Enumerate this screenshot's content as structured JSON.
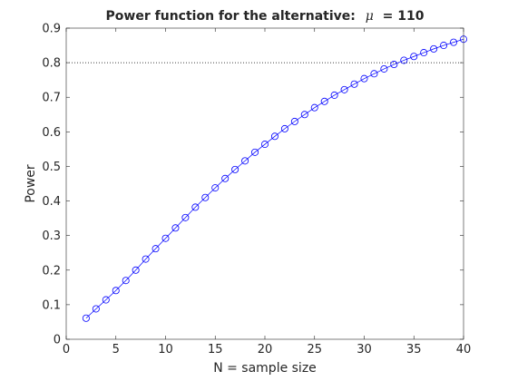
{
  "chart_data": {
    "type": "line",
    "title": "Power function for the alternative:",
    "title_symbol": "μ",
    "title_value": " = 110",
    "xlabel": "N = sample size",
    "ylabel": "Power",
    "xlim": [
      0,
      40
    ],
    "ylim": [
      0,
      0.9
    ],
    "xticks": [
      0,
      5,
      10,
      15,
      20,
      25,
      30,
      35,
      40
    ],
    "yticks": [
      0,
      0.1,
      0.2,
      0.3,
      0.4,
      0.5,
      0.6,
      0.7,
      0.8,
      0.9
    ],
    "grid": false,
    "reference_line": {
      "y": 0.8,
      "style": "dotted",
      "color": "#000000"
    },
    "series": [
      {
        "color": "#0000ff",
        "marker": "circle",
        "x": [
          2,
          3,
          4,
          5,
          6,
          7,
          8,
          9,
          10,
          11,
          12,
          13,
          14,
          15,
          16,
          17,
          18,
          19,
          20,
          21,
          22,
          23,
          24,
          25,
          26,
          27,
          28,
          29,
          30,
          31,
          32,
          33,
          34,
          35,
          36,
          37,
          38,
          39,
          40
        ],
        "y": [
          0.061,
          0.088,
          0.114,
          0.141,
          0.17,
          0.2,
          0.232,
          0.262,
          0.292,
          0.322,
          0.352,
          0.382,
          0.41,
          0.438,
          0.465,
          0.491,
          0.516,
          0.541,
          0.564,
          0.587,
          0.609,
          0.63,
          0.65,
          0.67,
          0.688,
          0.706,
          0.722,
          0.738,
          0.754,
          0.768,
          0.782,
          0.795,
          0.807,
          0.818,
          0.829,
          0.84,
          0.85,
          0.859,
          0.868
        ]
      }
    ]
  }
}
